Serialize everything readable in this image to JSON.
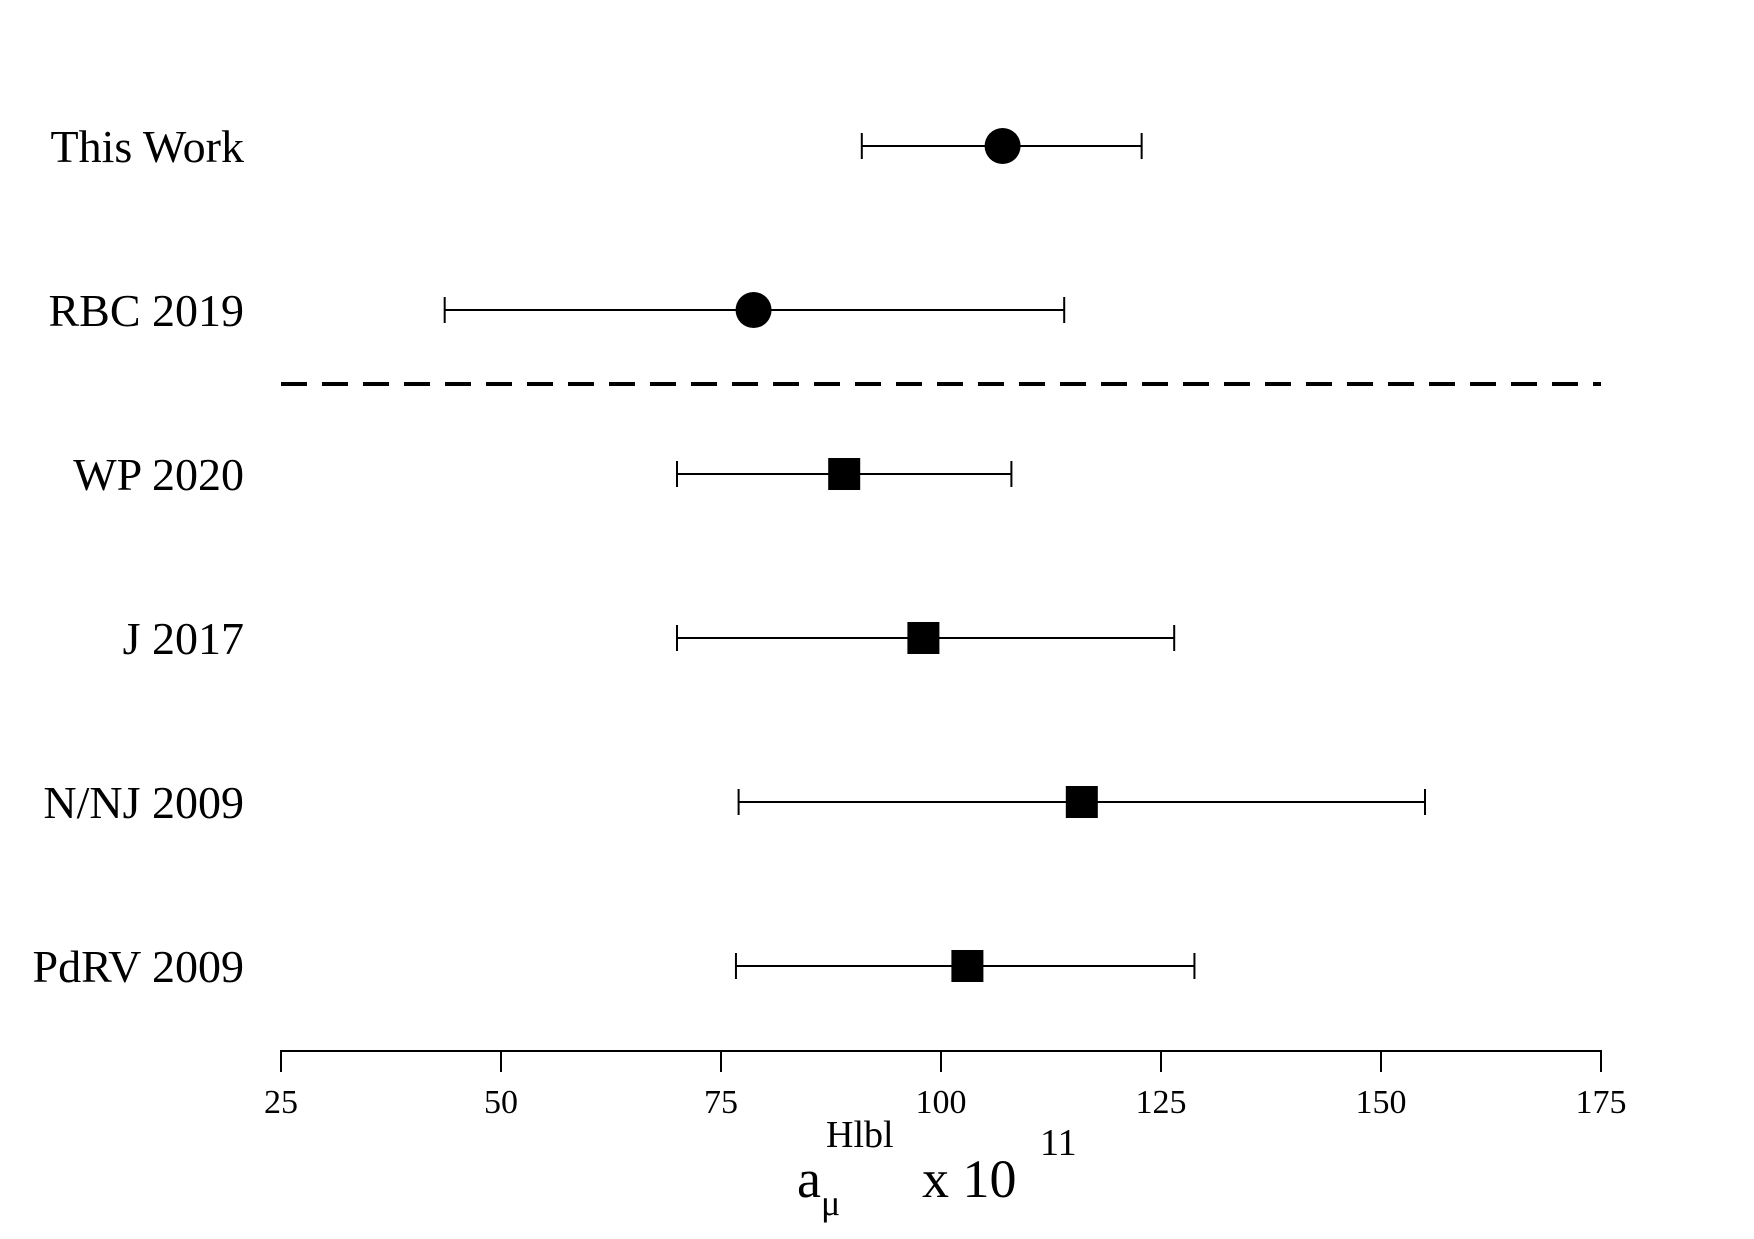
{
  "chart_data": {
    "type": "scatter",
    "title": "",
    "xlabel": {
      "base": "a",
      "subscript": "μ",
      "superscript": "Hlbl",
      "suffix": "x 10",
      "exponent": "11"
    },
    "ylabel": "",
    "xlim": [
      25,
      175
    ],
    "xticks": [
      25,
      50,
      75,
      100,
      125,
      150,
      175
    ],
    "grid": false,
    "separator_after_index": 1,
    "entries": [
      {
        "label": "This Work",
        "value": 107.0,
        "err_low": 91.0,
        "err_high": 122.8,
        "marker": "circle"
      },
      {
        "label": "RBC 2019",
        "value": 78.7,
        "err_low": 43.6,
        "err_high": 114.0,
        "marker": "circle"
      },
      {
        "label": "WP 2020",
        "value": 89.0,
        "err_low": 70.0,
        "err_high": 108.0,
        "marker": "square"
      },
      {
        "label": "J 2017",
        "value": 98.0,
        "err_low": 70.0,
        "err_high": 126.5,
        "marker": "square"
      },
      {
        "label": "N/NJ 2009",
        "value": 116.0,
        "err_low": 77.0,
        "err_high": 155.0,
        "marker": "square"
      },
      {
        "label": "PdRV 2009",
        "value": 103.0,
        "err_low": 76.7,
        "err_high": 128.8,
        "marker": "square"
      }
    ]
  }
}
